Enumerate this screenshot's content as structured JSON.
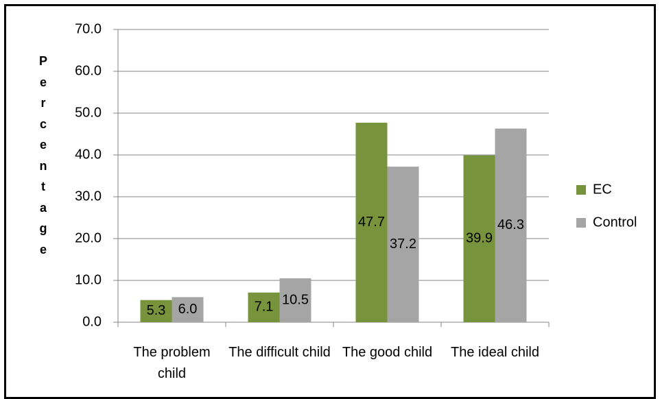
{
  "chart_data": {
    "type": "bar",
    "y_label": "Percentage",
    "categories": [
      "The problem child",
      "The difficult child",
      "The good child",
      "The ideal child"
    ],
    "series": [
      {
        "name": "EC",
        "color": "#77933c",
        "values": [
          5.3,
          7.1,
          47.7,
          39.9
        ],
        "value_labels": [
          "5.3",
          "7.1",
          "47.7",
          "39.9"
        ]
      },
      {
        "name": "Control",
        "color": "#a5a5a5",
        "values": [
          6.0,
          10.5,
          37.2,
          46.3
        ],
        "value_labels": [
          "6.0",
          "10.5",
          "37.2",
          "46.3"
        ]
      }
    ],
    "ylim": [
      0,
      70
    ],
    "yticks": [
      {
        "value": 0,
        "label": "0.0"
      },
      {
        "value": 10,
        "label": "10.0"
      },
      {
        "value": 20,
        "label": "20.0"
      },
      {
        "value": 30,
        "label": "30.0"
      },
      {
        "value": 40,
        "label": "40.0"
      },
      {
        "value": 50,
        "label": "50.0"
      },
      {
        "value": 60,
        "label": "60.0"
      },
      {
        "value": 70,
        "label": "70.0"
      }
    ],
    "grid": true,
    "legend": "right"
  }
}
